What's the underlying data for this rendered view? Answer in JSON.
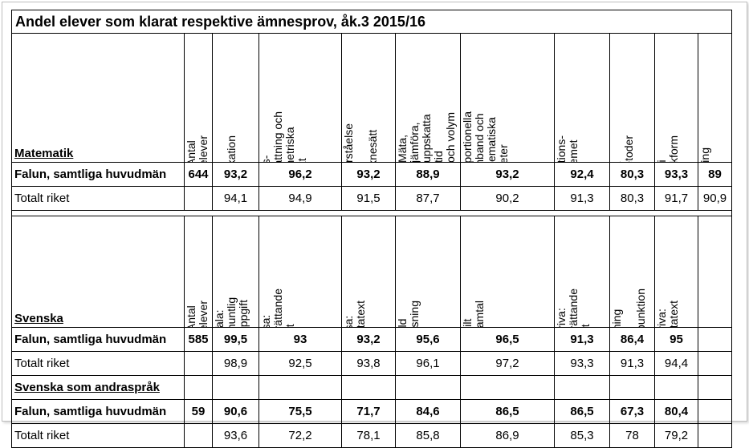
{
  "title": "Andel elever som klarat respektive ämnesprov, åk.3 2015/16",
  "matematik": {
    "section_label": "Matematik",
    "columns": [
      "Antal elever",
      "Muntlig\nkommunikation",
      "Rums-\nuppfattning och\ngeometriska\nobjekt",
      "Förståelse för\nräknesätt",
      "Mäta, jämföra,\nuppskatta tid\noch volym",
      "Proportionella\nsamband och\nmatematiska\nlikheter",
      "Positions-\nsystemet",
      "Skriftliga\nräknemetoder",
      "Tal i bråkform",
      "Huvudräkning"
    ],
    "rows": [
      {
        "label": "Falun, samtliga huvudmän",
        "bold": true,
        "values": [
          "644",
          "93,2",
          "96,2",
          "93,2",
          "88,9",
          "93,2",
          "92,4",
          "80,3",
          "93,3",
          "89"
        ]
      },
      {
        "label": "Totalt riket",
        "bold": false,
        "values": [
          "",
          "94,1",
          "94,9",
          "91,5",
          "87,7",
          "90,2",
          "91,3",
          "80,3",
          "91,7",
          "90,9"
        ]
      }
    ]
  },
  "svenska": {
    "section_label": "Svenska",
    "columns": [
      "Antal elever",
      "Tala: muntlig\nuppgift",
      "Läsa:\nberättande\ntext",
      "Läsa:\nfaktatext",
      "Enskild\nhögläsning",
      "Enskilt\ntextsamtal",
      "Skriva:\nberättande\ntext",
      "Stavning och\ninterpunktion",
      "Skriva:\nfaktatext"
    ],
    "rows": [
      {
        "label": "Falun, samtliga huvudmän",
        "bold": true,
        "values": [
          "585",
          "99,5",
          "93",
          "93,2",
          "95,6",
          "96,5",
          "91,3",
          "86,4",
          "95"
        ]
      },
      {
        "label": "Totalt riket",
        "bold": false,
        "values": [
          "",
          "98,9",
          "92,5",
          "93,8",
          "96,1",
          "97,2",
          "93,3",
          "91,3",
          "94,4"
        ]
      }
    ]
  },
  "sva": {
    "section_label": "Svenska som andraspråk",
    "rows": [
      {
        "label": "Falun, samtliga huvudmän",
        "bold": true,
        "values": [
          "59",
          "90,6",
          "75,5",
          "71,7",
          "84,6",
          "86,5",
          "86,5",
          "67,3",
          "80,4"
        ]
      },
      {
        "label": "Totalt riket",
        "bold": false,
        "values": [
          "",
          "93,6",
          "72,2",
          "78,1",
          "85,8",
          "86,9",
          "85,3",
          "78",
          "79,2"
        ]
      }
    ]
  }
}
